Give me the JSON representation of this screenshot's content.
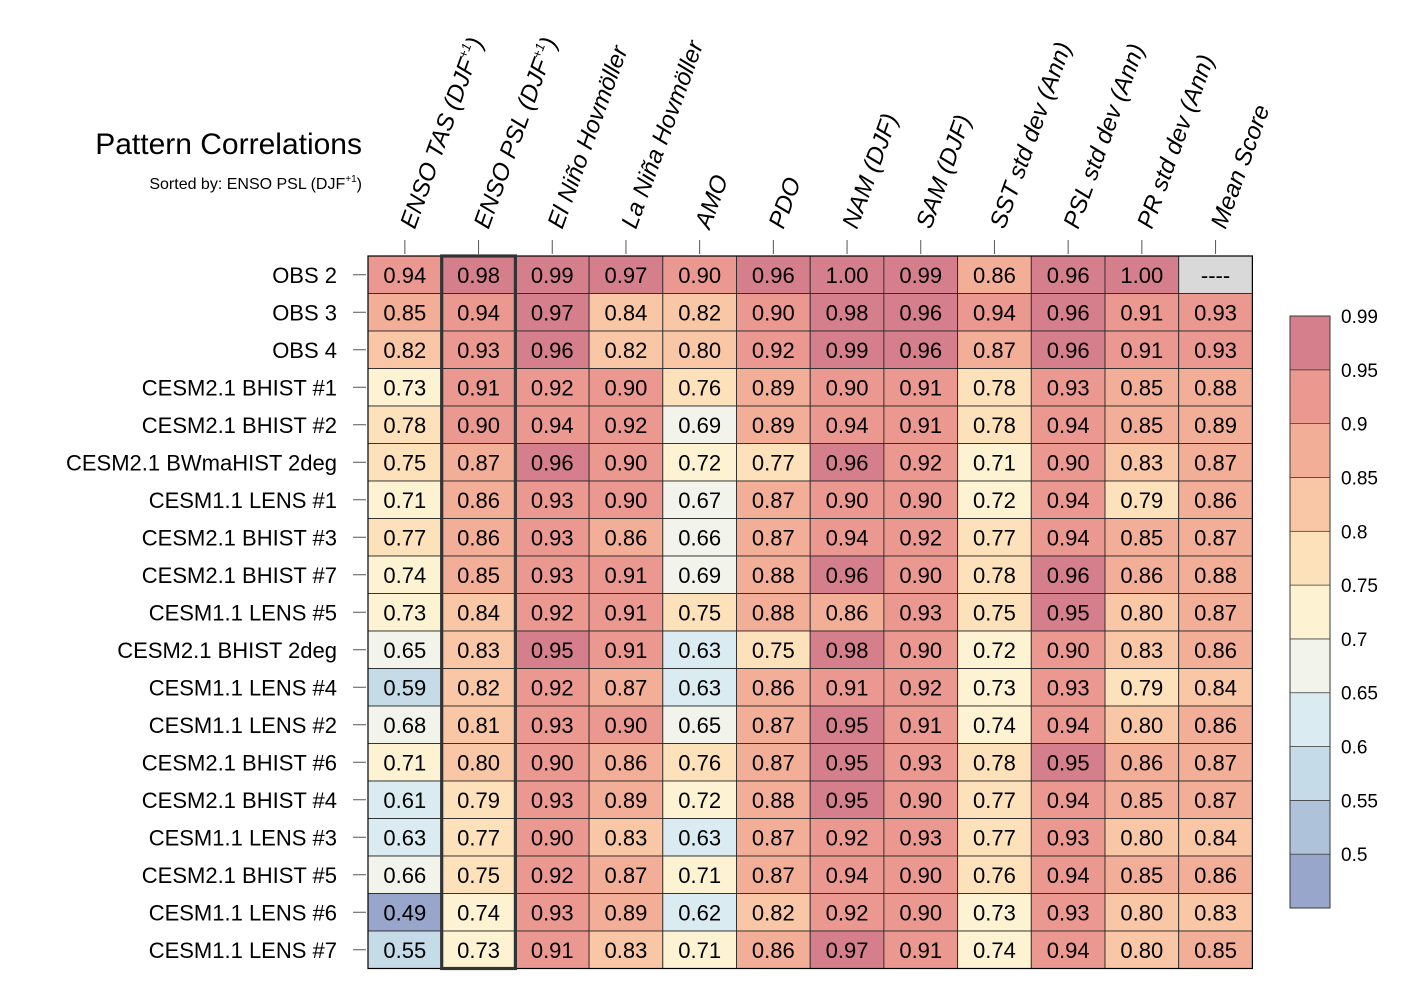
{
  "chart_data": {
    "type": "heatmap",
    "title": "Pattern Correlations",
    "subtitle": "Sorted by: ENSO PSL (DJF",
    "subtitle_sup": "+1",
    "subtitle_close": ")",
    "columns": [
      {
        "label": "ENSO TAS (DJF",
        "sup": "+1",
        "close": ")"
      },
      {
        "label": "ENSO PSL (DJF",
        "sup": "+1",
        "close": ")"
      },
      {
        "label": "El Niño Hovmöller"
      },
      {
        "label": "La Niña Hovmöller"
      },
      {
        "label": "AMO"
      },
      {
        "label": "PDO"
      },
      {
        "label": "NAM (DJF)"
      },
      {
        "label": "SAM (DJF)"
      },
      {
        "label": "SST std dev (Ann)"
      },
      {
        "label": "PSL std dev (Ann)"
      },
      {
        "label": "PR std dev (Ann)"
      },
      {
        "label": "Mean Score"
      }
    ],
    "sorted_column": 1,
    "rows": [
      "OBS 2",
      "OBS 3",
      "OBS 4",
      "CESM2.1 BHIST #1",
      "CESM2.1 BHIST #2",
      "CESM2.1 BWmaHIST 2deg",
      "CESM1.1 LENS #1",
      "CESM2.1 BHIST #3",
      "CESM2.1 BHIST #7",
      "CESM1.1 LENS #5",
      "CESM2.1 BHIST 2deg",
      "CESM1.1 LENS #4",
      "CESM1.1 LENS #2",
      "CESM2.1 BHIST #6",
      "CESM2.1 BHIST #4",
      "CESM1.1 LENS #3",
      "CESM2.1 BHIST #5",
      "CESM1.1 LENS #6",
      "CESM1.1 LENS #7"
    ],
    "values": [
      [
        "0.94",
        "0.98",
        "0.99",
        "0.97",
        "0.90",
        "0.96",
        "1.00",
        "0.99",
        "0.86",
        "0.96",
        "1.00",
        "----"
      ],
      [
        "0.85",
        "0.94",
        "0.97",
        "0.84",
        "0.82",
        "0.90",
        "0.98",
        "0.96",
        "0.94",
        "0.96",
        "0.91",
        "0.93"
      ],
      [
        "0.82",
        "0.93",
        "0.96",
        "0.82",
        "0.80",
        "0.92",
        "0.99",
        "0.96",
        "0.87",
        "0.96",
        "0.91",
        "0.93"
      ],
      [
        "0.73",
        "0.91",
        "0.92",
        "0.90",
        "0.76",
        "0.89",
        "0.90",
        "0.91",
        "0.78",
        "0.93",
        "0.85",
        "0.88"
      ],
      [
        "0.78",
        "0.90",
        "0.94",
        "0.92",
        "0.69",
        "0.89",
        "0.94",
        "0.91",
        "0.78",
        "0.94",
        "0.85",
        "0.89"
      ],
      [
        "0.75",
        "0.87",
        "0.96",
        "0.90",
        "0.72",
        "0.77",
        "0.96",
        "0.92",
        "0.71",
        "0.90",
        "0.83",
        "0.87"
      ],
      [
        "0.71",
        "0.86",
        "0.93",
        "0.90",
        "0.67",
        "0.87",
        "0.90",
        "0.90",
        "0.72",
        "0.94",
        "0.79",
        "0.86"
      ],
      [
        "0.77",
        "0.86",
        "0.93",
        "0.86",
        "0.66",
        "0.87",
        "0.94",
        "0.92",
        "0.77",
        "0.94",
        "0.85",
        "0.87"
      ],
      [
        "0.74",
        "0.85",
        "0.93",
        "0.91",
        "0.69",
        "0.88",
        "0.96",
        "0.90",
        "0.78",
        "0.96",
        "0.86",
        "0.88"
      ],
      [
        "0.73",
        "0.84",
        "0.92",
        "0.91",
        "0.75",
        "0.88",
        "0.86",
        "0.93",
        "0.75",
        "0.95",
        "0.80",
        "0.87"
      ],
      [
        "0.65",
        "0.83",
        "0.95",
        "0.91",
        "0.63",
        "0.75",
        "0.98",
        "0.90",
        "0.72",
        "0.90",
        "0.83",
        "0.86"
      ],
      [
        "0.59",
        "0.82",
        "0.92",
        "0.87",
        "0.63",
        "0.86",
        "0.91",
        "0.92",
        "0.73",
        "0.93",
        "0.79",
        "0.84"
      ],
      [
        "0.68",
        "0.81",
        "0.93",
        "0.90",
        "0.65",
        "0.87",
        "0.95",
        "0.91",
        "0.74",
        "0.94",
        "0.80",
        "0.86"
      ],
      [
        "0.71",
        "0.80",
        "0.90",
        "0.86",
        "0.76",
        "0.87",
        "0.95",
        "0.93",
        "0.78",
        "0.95",
        "0.86",
        "0.87"
      ],
      [
        "0.61",
        "0.79",
        "0.93",
        "0.89",
        "0.72",
        "0.88",
        "0.95",
        "0.90",
        "0.77",
        "0.94",
        "0.85",
        "0.87"
      ],
      [
        "0.63",
        "0.77",
        "0.90",
        "0.83",
        "0.63",
        "0.87",
        "0.92",
        "0.93",
        "0.77",
        "0.93",
        "0.80",
        "0.84"
      ],
      [
        "0.66",
        "0.75",
        "0.92",
        "0.87",
        "0.71",
        "0.87",
        "0.94",
        "0.90",
        "0.76",
        "0.94",
        "0.85",
        "0.86"
      ],
      [
        "0.49",
        "0.74",
        "0.93",
        "0.89",
        "0.62",
        "0.82",
        "0.92",
        "0.90",
        "0.73",
        "0.93",
        "0.80",
        "0.83"
      ],
      [
        "0.55",
        "0.73",
        "0.91",
        "0.83",
        "0.71",
        "0.86",
        "0.97",
        "0.91",
        "0.74",
        "0.94",
        "0.80",
        "0.85"
      ]
    ],
    "colorbar": {
      "levels": [
        "0.5",
        "0.55",
        "0.6",
        "0.65",
        "0.7",
        "0.75",
        "0.8",
        "0.85",
        "0.9",
        "0.95",
        "0.99"
      ],
      "colors": [
        "#98a6cc",
        "#aec2da",
        "#c5dbe8",
        "#dbebf2",
        "#f2f3ea",
        "#fdf3d3",
        "#fde1bb",
        "#f9c7a5",
        "#f3ae98",
        "#eb9890",
        "#d57f8c"
      ]
    },
    "missing_color": "#d9d9d9"
  }
}
